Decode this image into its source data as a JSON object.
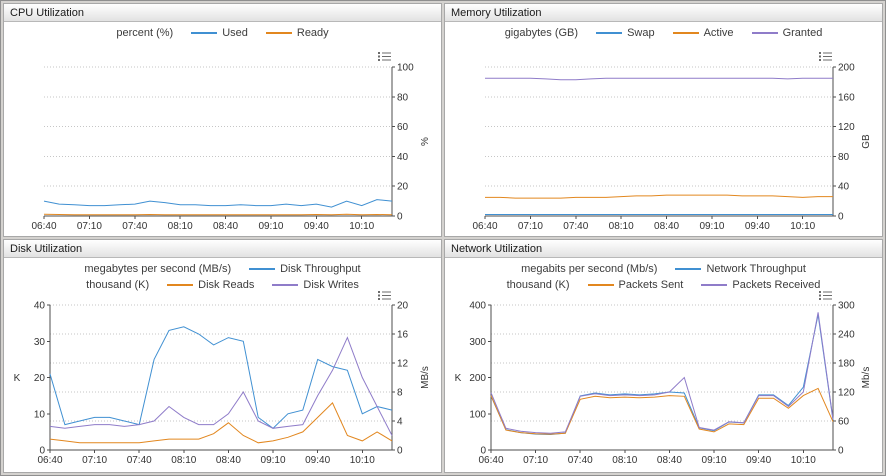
{
  "colors": {
    "blue": "#4090d2",
    "orange": "#e2871f",
    "purple": "#8f7cc9",
    "grid": "#c6c6c6",
    "axis": "#4d4d4d"
  },
  "chart_data": [
    {
      "type": "line",
      "title": "CPU Utilization",
      "x": [
        "06:40",
        "06:50",
        "07:00",
        "07:10",
        "07:20",
        "07:30",
        "07:40",
        "07:50",
        "08:00",
        "08:10",
        "08:20",
        "08:30",
        "08:40",
        "08:50",
        "09:00",
        "09:10",
        "09:20",
        "09:30",
        "09:40",
        "09:50",
        "10:00",
        "10:10",
        "10:20",
        "10:25"
      ],
      "x_axis": {
        "labels": [
          "06:40",
          "07:10",
          "07:40",
          "08:10",
          "08:40",
          "09:10",
          "09:40",
          "10:10"
        ],
        "label_indices": [
          0,
          3,
          6,
          9,
          12,
          15,
          18,
          21
        ]
      },
      "legend_rows": [
        {
          "unit": "percent (%)",
          "items": [
            "Used",
            "Ready"
          ]
        }
      ],
      "right_axis": {
        "label": "%",
        "min": 0,
        "max": 100,
        "ticks": [
          0,
          20,
          40,
          60,
          80,
          100
        ]
      },
      "series": [
        {
          "name": "Used",
          "color": "#4090d2",
          "axis": "right",
          "values": [
            10,
            8,
            7.5,
            7,
            7,
            7.5,
            8,
            10,
            9,
            7.5,
            7.5,
            7,
            7,
            7.5,
            7,
            7,
            8,
            7,
            8,
            6,
            10,
            7,
            11,
            10
          ]
        },
        {
          "name": "Ready",
          "color": "#e2871f",
          "axis": "right",
          "values": [
            1.2,
            1,
            0.8,
            0.8,
            0.8,
            0.8,
            0.8,
            1,
            0.8,
            0.8,
            0.8,
            0.8,
            0.8,
            0.8,
            0.8,
            0.8,
            0.8,
            0.8,
            1,
            0.8,
            1.2,
            0.8,
            1,
            0.9
          ]
        }
      ]
    },
    {
      "type": "line",
      "title": "Memory Utilization",
      "x": [
        "06:40",
        "06:50",
        "07:00",
        "07:10",
        "07:20",
        "07:30",
        "07:40",
        "07:50",
        "08:00",
        "08:10",
        "08:20",
        "08:30",
        "08:40",
        "08:50",
        "09:00",
        "09:10",
        "09:20",
        "09:30",
        "09:40",
        "09:50",
        "10:00",
        "10:10",
        "10:20",
        "10:25"
      ],
      "x_axis": {
        "labels": [
          "06:40",
          "07:10",
          "07:40",
          "08:10",
          "08:40",
          "09:10",
          "09:40",
          "10:10"
        ],
        "label_indices": [
          0,
          3,
          6,
          9,
          12,
          15,
          18,
          21
        ]
      },
      "legend_rows": [
        {
          "unit": "gigabytes (GB)",
          "items": [
            "Swap",
            "Active",
            "Granted"
          ]
        }
      ],
      "right_axis": {
        "label": "GB",
        "min": 0,
        "max": 200,
        "ticks": [
          0,
          40,
          80,
          120,
          160,
          200
        ]
      },
      "series": [
        {
          "name": "Swap",
          "color": "#4090d2",
          "axis": "right",
          "values": [
            2,
            2,
            2,
            2,
            2,
            2,
            2,
            2,
            2,
            2,
            2,
            2,
            2,
            2,
            2,
            2,
            2,
            2,
            2,
            2,
            2,
            2,
            2,
            2
          ]
        },
        {
          "name": "Active",
          "color": "#e2871f",
          "axis": "right",
          "values": [
            25,
            25,
            24,
            24,
            24,
            24,
            25,
            25,
            25,
            26,
            27,
            27,
            28,
            28,
            28,
            28,
            28,
            27,
            27,
            27,
            26,
            25,
            26,
            26
          ]
        },
        {
          "name": "Granted",
          "color": "#8f7cc9",
          "axis": "right",
          "values": [
            185,
            185,
            185,
            185,
            184,
            183,
            183,
            184,
            185,
            185,
            185,
            185,
            185,
            185,
            185,
            185,
            185,
            185,
            185,
            185,
            184,
            185,
            185,
            185
          ]
        }
      ]
    },
    {
      "type": "line",
      "title": "Disk Utilization",
      "x": [
        "06:40",
        "06:50",
        "07:00",
        "07:10",
        "07:20",
        "07:30",
        "07:40",
        "07:50",
        "08:00",
        "08:10",
        "08:20",
        "08:30",
        "08:40",
        "08:50",
        "09:00",
        "09:10",
        "09:20",
        "09:30",
        "09:40",
        "09:50",
        "10:00",
        "10:10",
        "10:20",
        "10:25"
      ],
      "x_axis": {
        "labels": [
          "06:40",
          "07:10",
          "07:40",
          "08:10",
          "08:40",
          "09:10",
          "09:40",
          "10:10"
        ],
        "label_indices": [
          0,
          3,
          6,
          9,
          12,
          15,
          18,
          21
        ]
      },
      "legend_rows": [
        {
          "unit": "megabytes per second (MB/s)",
          "items": [
            "Disk Throughput"
          ]
        },
        {
          "unit": "thousand (K)",
          "items": [
            "Disk Reads",
            "Disk Writes"
          ]
        }
      ],
      "left_axis": {
        "label": "K",
        "min": 0,
        "max": 40,
        "ticks": [
          0,
          10,
          20,
          30,
          40
        ]
      },
      "right_axis": {
        "label": "MB/s",
        "min": 0,
        "max": 20,
        "ticks": [
          0,
          4,
          8,
          12,
          16,
          20
        ]
      },
      "series": [
        {
          "name": "Disk Throughput",
          "color": "#4090d2",
          "axis": "right",
          "values": [
            10.5,
            3.5,
            4,
            4.5,
            4.5,
            4,
            3.5,
            12.5,
            16.5,
            17,
            16,
            14.5,
            15.5,
            15,
            4.5,
            3,
            5,
            5.5,
            12.5,
            11.5,
            11,
            5,
            6,
            5.5
          ]
        },
        {
          "name": "Disk Reads",
          "color": "#e2871f",
          "axis": "left",
          "values": [
            3,
            2.5,
            2,
            2,
            2,
            2,
            2,
            2.5,
            3,
            3,
            3,
            4.5,
            7.5,
            4,
            2,
            2.5,
            3.5,
            5,
            9,
            13,
            4,
            2.5,
            5,
            2.5
          ]
        },
        {
          "name": "Disk Writes",
          "color": "#8f7cc9",
          "axis": "left",
          "values": [
            6.5,
            6,
            6.5,
            7,
            7,
            6.5,
            7,
            8,
            12,
            9,
            7,
            7,
            10,
            16,
            8,
            6,
            6.5,
            7,
            15,
            22,
            31,
            20,
            12,
            4
          ]
        }
      ]
    },
    {
      "type": "line",
      "title": "Network Utilization",
      "x": [
        "06:40",
        "06:50",
        "07:00",
        "07:10",
        "07:20",
        "07:30",
        "07:40",
        "07:50",
        "08:00",
        "08:10",
        "08:20",
        "08:30",
        "08:40",
        "08:50",
        "09:00",
        "09:10",
        "09:20",
        "09:30",
        "09:40",
        "09:50",
        "10:00",
        "10:10",
        "10:20",
        "10:25"
      ],
      "x_axis": {
        "labels": [
          "06:40",
          "07:10",
          "07:40",
          "08:10",
          "08:40",
          "09:10",
          "09:40",
          "10:10"
        ],
        "label_indices": [
          0,
          3,
          6,
          9,
          12,
          15,
          18,
          21
        ]
      },
      "legend_rows": [
        {
          "unit": "megabits per second (Mb/s)",
          "items": [
            "Network Throughput"
          ]
        },
        {
          "unit": "thousand (K)",
          "items": [
            "Packets Sent",
            "Packets Received"
          ]
        }
      ],
      "left_axis": {
        "label": "K",
        "min": 0,
        "max": 400,
        "ticks": [
          0,
          100,
          200,
          300,
          400
        ]
      },
      "right_axis": {
        "label": "Mb/s",
        "min": 0,
        "max": 300,
        "ticks": [
          0,
          60,
          120,
          180,
          240,
          300
        ]
      },
      "series": [
        {
          "name": "Network Throughput",
          "color": "#4090d2",
          "axis": "right",
          "values": [
            112,
            42,
            36,
            33,
            32,
            35,
            112,
            118,
            114,
            116,
            114,
            116,
            120,
            118,
            46,
            40,
            58,
            56,
            114,
            114,
            92,
            130,
            280,
            62
          ]
        },
        {
          "name": "Packets Sent",
          "color": "#e2871f",
          "axis": "left",
          "values": [
            150,
            55,
            48,
            45,
            44,
            46,
            140,
            148,
            144,
            146,
            144,
            146,
            150,
            148,
            58,
            50,
            72,
            70,
            143,
            143,
            115,
            150,
            170,
            78
          ]
        },
        {
          "name": "Packets Received",
          "color": "#8f7cc9",
          "axis": "left",
          "values": [
            158,
            60,
            52,
            48,
            46,
            50,
            148,
            155,
            150,
            152,
            150,
            152,
            160,
            200,
            62,
            55,
            78,
            75,
            150,
            150,
            120,
            160,
            380,
            85
          ]
        }
      ]
    }
  ]
}
